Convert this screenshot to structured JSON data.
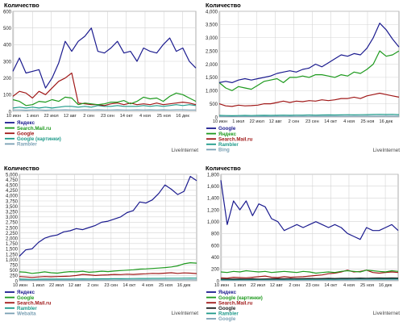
{
  "chart_data": [
    {
      "type": "line",
      "title": "Количество",
      "brand": "LiveInternet",
      "ylim": [
        0,
        600
      ],
      "yticks": [
        0,
        100,
        200,
        300,
        400,
        500,
        600
      ],
      "xtick_labels": [
        "10 июн",
        "1 июл",
        "22 июл",
        "12 авг",
        "2 сен",
        "23 сен",
        "14 окт",
        "4 ноя",
        "25 ноя",
        "16 дек"
      ],
      "grid": true,
      "legend_position": "bottom-left",
      "series": [
        {
          "name": "Яндекс",
          "color": "#1b1b8f",
          "values": [
            240,
            320,
            230,
            240,
            250,
            140,
            200,
            290,
            420,
            360,
            420,
            450,
            500,
            360,
            350,
            380,
            420,
            350,
            360,
            300,
            380,
            360,
            350,
            400,
            440,
            360,
            380,
            300,
            260
          ]
        },
        {
          "name": "Search.Mail.ru",
          "color": "#1e9a1e",
          "values": [
            70,
            60,
            35,
            40,
            60,
            55,
            70,
            60,
            85,
            80,
            40,
            50,
            45,
            40,
            45,
            55,
            55,
            65,
            45,
            60,
            85,
            75,
            80,
            60,
            90,
            110,
            100,
            80,
            60
          ]
        },
        {
          "name": "Google",
          "color": "#a01818",
          "values": [
            90,
            120,
            110,
            80,
            120,
            100,
            140,
            180,
            200,
            230,
            50,
            45,
            40,
            40,
            35,
            45,
            50,
            40,
            50,
            40,
            45,
            40,
            50,
            40,
            45,
            50,
            55,
            50,
            40
          ]
        },
        {
          "name": "Google (картинки)",
          "color": "#1e9a8a",
          "values": [
            20,
            25,
            20,
            25,
            20,
            25,
            20,
            25,
            30,
            30,
            25,
            30,
            25,
            35,
            30,
            30,
            35,
            30,
            30,
            30,
            35,
            30,
            35,
            30,
            35,
            40,
            35,
            40,
            35
          ]
        },
        {
          "name": "Rambler",
          "color": "#7aa0b4",
          "values": [
            8,
            8,
            7,
            8,
            8,
            7,
            8,
            8,
            9,
            8,
            8,
            9,
            8,
            9,
            8,
            8,
            9,
            8,
            8,
            9,
            8,
            9,
            8,
            9,
            8,
            9,
            9,
            8,
            8
          ]
        }
      ]
    },
    {
      "type": "line",
      "title": "Количество",
      "brand": "LiveInternet",
      "ylim": [
        0,
        4000
      ],
      "yticks": [
        0,
        500,
        1000,
        1500,
        2000,
        2500,
        3000,
        3500,
        4000
      ],
      "xtick_labels": [
        "10 июн",
        "1 июл",
        "22 июл",
        "12 авг",
        "2 сен",
        "23 сен",
        "14 окт",
        "4 ноя",
        "25 ноя",
        "16 дек"
      ],
      "grid": true,
      "legend_position": "bottom-left",
      "series": [
        {
          "name": "Google",
          "color": "#1b1b8f",
          "values": [
            1300,
            1350,
            1300,
            1400,
            1450,
            1400,
            1450,
            1500,
            1550,
            1650,
            1700,
            1750,
            1700,
            1800,
            1850,
            2000,
            1900,
            2050,
            2200,
            2350,
            2300,
            2400,
            2350,
            2600,
            3000,
            3550,
            3300,
            2950,
            2650
          ]
        },
        {
          "name": "Яндекс",
          "color": "#1e9a1e",
          "values": [
            1300,
            1100,
            1000,
            1150,
            1100,
            1050,
            1200,
            1350,
            1400,
            1450,
            1300,
            1500,
            1500,
            1550,
            1500,
            1600,
            1600,
            1550,
            1500,
            1600,
            1550,
            1700,
            1650,
            1800,
            2000,
            2500,
            2300,
            2350,
            2500
          ]
        },
        {
          "name": "Search.Mail.ru",
          "color": "#a01818",
          "values": [
            500,
            420,
            400,
            450,
            420,
            430,
            450,
            500,
            500,
            550,
            600,
            550,
            600,
            580,
            620,
            600,
            650,
            620,
            650,
            700,
            700,
            750,
            700,
            800,
            850,
            900,
            850,
            800,
            750
          ]
        },
        {
          "name": "Rambler",
          "color": "#1e9a8a",
          "values": [
            60,
            55,
            50,
            55,
            60,
            55,
            60,
            65,
            60,
            65,
            70,
            65,
            70,
            70,
            75,
            70,
            75,
            80,
            75,
            80,
            85,
            80,
            85,
            90,
            95,
            100,
            95,
            100,
            90
          ]
        },
        {
          "name": "Bing",
          "color": "#7aa0b4",
          "values": [
            20,
            20,
            18,
            20,
            22,
            20,
            22,
            24,
            22,
            24,
            25,
            24,
            25,
            26,
            25,
            27,
            26,
            28,
            27,
            28,
            29,
            28,
            30,
            30,
            32,
            34,
            33,
            34,
            32
          ]
        }
      ]
    },
    {
      "type": "line",
      "title": "Количество",
      "brand": "LiveInternet",
      "ylim": [
        0,
        5000
      ],
      "yticks": [
        0,
        250,
        500,
        750,
        1000,
        1250,
        1500,
        1750,
        2000,
        2250,
        2500,
        2750,
        3000,
        3250,
        3500,
        3750,
        4000,
        4250,
        4500,
        4750,
        5000
      ],
      "ytick_labels": [
        "0",
        "250",
        "500",
        "750",
        "1,000",
        "1,250",
        "1,500",
        "1,750",
        "2,000",
        "2,250",
        "2,500",
        "2,750",
        "3,000",
        "3,250",
        "3,500",
        "3,750",
        "4,000",
        "4,250",
        "4,500",
        "4,750",
        "5,000"
      ],
      "xtick_labels": [
        "10 июн",
        "1 июл",
        "22 июл",
        "12 авг",
        "2 сен",
        "23 сен",
        "14 окт",
        "4 ноя",
        "25 ноя",
        "16 дек"
      ],
      "grid": true,
      "legend_position": "bottom-left",
      "series": [
        {
          "name": "Яндекс",
          "color": "#1b1b8f",
          "values": [
            1150,
            1450,
            1500,
            1800,
            2000,
            2100,
            2150,
            2300,
            2350,
            2450,
            2400,
            2500,
            2600,
            2750,
            2800,
            2900,
            3000,
            3200,
            3300,
            3700,
            3650,
            3800,
            4100,
            4500,
            4300,
            4050,
            4200,
            4900,
            4700
          ]
        },
        {
          "name": "Google",
          "color": "#1e9a1e",
          "values": [
            420,
            400,
            350,
            380,
            420,
            380,
            360,
            400,
            430,
            420,
            450,
            400,
            420,
            450,
            430,
            460,
            480,
            500,
            520,
            550,
            560,
            580,
            600,
            620,
            650,
            700,
            800,
            850,
            830
          ]
        },
        {
          "name": "Search.Mail.ru",
          "color": "#a01818",
          "values": [
            200,
            180,
            160,
            180,
            200,
            190,
            200,
            210,
            220,
            250,
            300,
            280,
            250,
            270,
            280,
            300,
            290,
            310,
            300,
            320,
            330,
            350,
            340,
            360,
            380,
            350,
            370,
            360,
            340
          ]
        },
        {
          "name": "Rambler",
          "color": "#1e9a8a",
          "values": [
            80,
            75,
            70,
            75,
            80,
            78,
            80,
            82,
            85,
            88,
            90,
            88,
            92,
            95,
            95,
            98,
            100,
            102,
            105,
            108,
            110,
            112,
            115,
            118,
            120,
            122,
            125,
            128,
            125
          ]
        },
        {
          "name": "Webalta",
          "color": "#7aa0b4",
          "values": [
            30,
            30,
            28,
            30,
            32,
            30,
            32,
            33,
            34,
            35,
            36,
            35,
            36,
            37,
            38,
            38,
            40,
            40,
            41,
            42,
            42,
            44,
            44,
            45,
            46,
            47,
            48,
            48,
            47
          ]
        }
      ]
    },
    {
      "type": "line",
      "title": "Количество",
      "brand": "LiveInternet",
      "ylim": [
        0,
        1800
      ],
      "yticks": [
        0,
        200,
        400,
        600,
        800,
        1000,
        1200,
        1400,
        1600,
        1800
      ],
      "ytick_labels": [
        "0",
        "200",
        "400",
        "600",
        "800",
        "1,000",
        "1,200",
        "1,400",
        "1,600",
        "1,800"
      ],
      "xtick_labels": [
        "10 июн",
        "1 июл",
        "22 июл",
        "12 авг",
        "2 сен",
        "23 сен",
        "14 окт",
        "4 ноя",
        "25 ноя",
        "16 дек"
      ],
      "grid": true,
      "legend_position": "bottom-left",
      "series": [
        {
          "name": "Яндекс",
          "color": "#1b1b8f",
          "values": [
            1700,
            950,
            1350,
            1200,
            1350,
            1100,
            1300,
            1250,
            1050,
            1000,
            850,
            900,
            950,
            900,
            950,
            1000,
            950,
            900,
            950,
            900,
            800,
            750,
            700,
            900,
            850,
            850,
            900,
            950,
            850
          ]
        },
        {
          "name": "Google (картинки)",
          "color": "#1e9a1e",
          "values": [
            150,
            140,
            160,
            150,
            170,
            160,
            150,
            160,
            140,
            150,
            160,
            150,
            140,
            160,
            150,
            130,
            140,
            150,
            140,
            160,
            170,
            160,
            150,
            180,
            170,
            160,
            150,
            170,
            160
          ]
        },
        {
          "name": "Search.Mail.ru",
          "color": "#a01818",
          "values": [
            50,
            45,
            60,
            55,
            50,
            60,
            70,
            80,
            60,
            55,
            70,
            60,
            65,
            70,
            80,
            90,
            100,
            120,
            130,
            150,
            180,
            150,
            160,
            180,
            140,
            130,
            140,
            150,
            140
          ]
        },
        {
          "name": "Google",
          "color": "#1b1b1b",
          "values": [
            30,
            30,
            28,
            32,
            30,
            34,
            30,
            32,
            34,
            36,
            34,
            38,
            36,
            38,
            40,
            38,
            40,
            42,
            40,
            44,
            42,
            44,
            46,
            44,
            46,
            48,
            46,
            48,
            46
          ]
        },
        {
          "name": "Rambler",
          "color": "#1e9a8a",
          "values": [
            20,
            20,
            18,
            20,
            22,
            20,
            22,
            22,
            24,
            24,
            24,
            26,
            25,
            26,
            27,
            27,
            28,
            28,
            29,
            30,
            30,
            31,
            31,
            32,
            32,
            33,
            33,
            34,
            33
          ]
        },
        {
          "name": "Google",
          "color": "#7aa0b4",
          "values": [
            10,
            10,
            9,
            10,
            11,
            10,
            11,
            11,
            12,
            12,
            12,
            13,
            12,
            13,
            13,
            13,
            14,
            14,
            14,
            15,
            15,
            15,
            16,
            16,
            16,
            17,
            17,
            17,
            16
          ]
        }
      ]
    }
  ]
}
